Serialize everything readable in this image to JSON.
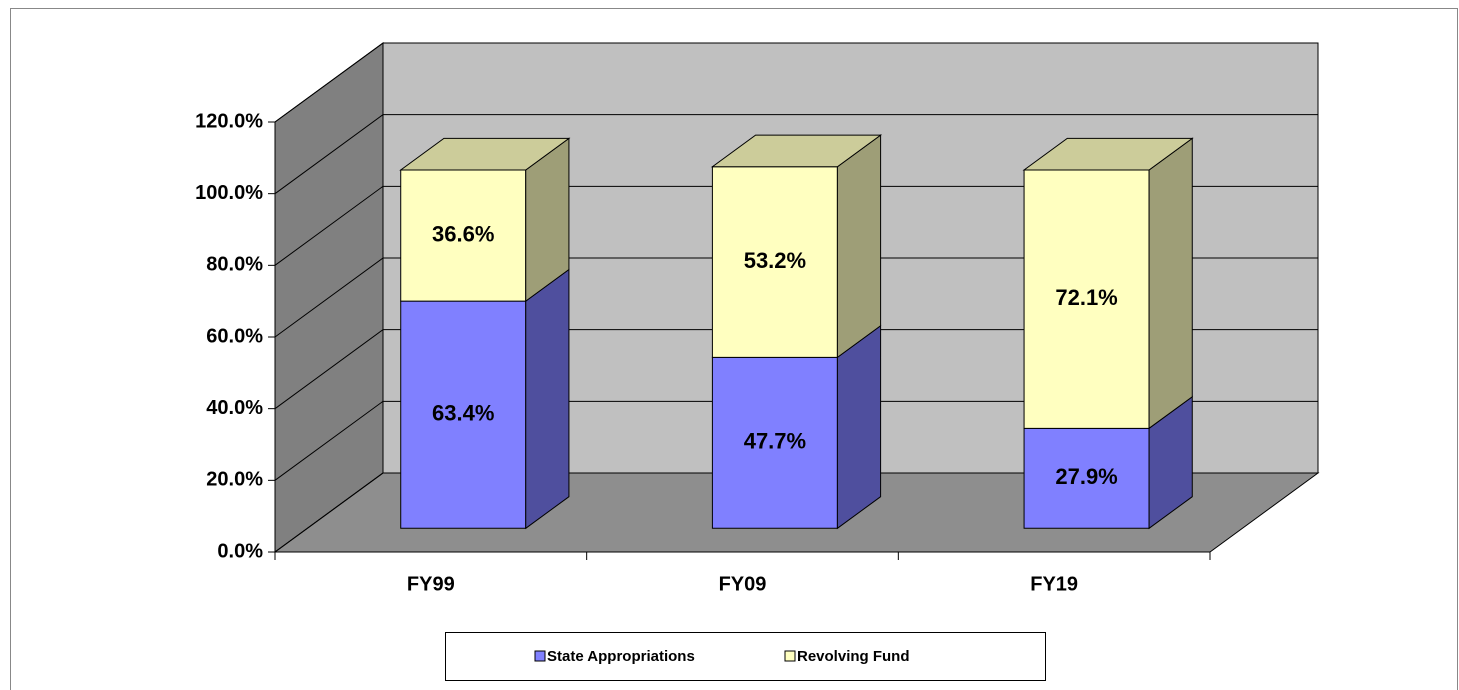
{
  "chart_data": {
    "type": "bar3d_stacked",
    "categories": [
      "FY99",
      "FY09",
      "FY19"
    ],
    "series": [
      {
        "name": "State Appropriations",
        "color": "#8080ff",
        "values": [
          63.4,
          47.7,
          27.9
        ],
        "value_labels": [
          "63.4%",
          "47.7%",
          "27.9%"
        ]
      },
      {
        "name": "Revolving Fund",
        "color": "#ffffc0",
        "values": [
          36.6,
          53.2,
          72.1
        ],
        "value_labels": [
          "36.6%",
          "53.2%",
          "72.1%"
        ]
      }
    ],
    "ylim": [
      0,
      120
    ],
    "yticks": [
      {
        "value": 0,
        "label": "0.0%"
      },
      {
        "value": 20,
        "label": "20.0%"
      },
      {
        "value": 40,
        "label": "40.0%"
      },
      {
        "value": 60,
        "label": "60.0%"
      },
      {
        "value": 80,
        "label": "80.0%"
      },
      {
        "value": 100,
        "label": "100.0%"
      },
      {
        "value": 120,
        "label": "120.0%"
      }
    ],
    "grid": true,
    "legend": "bottom"
  }
}
